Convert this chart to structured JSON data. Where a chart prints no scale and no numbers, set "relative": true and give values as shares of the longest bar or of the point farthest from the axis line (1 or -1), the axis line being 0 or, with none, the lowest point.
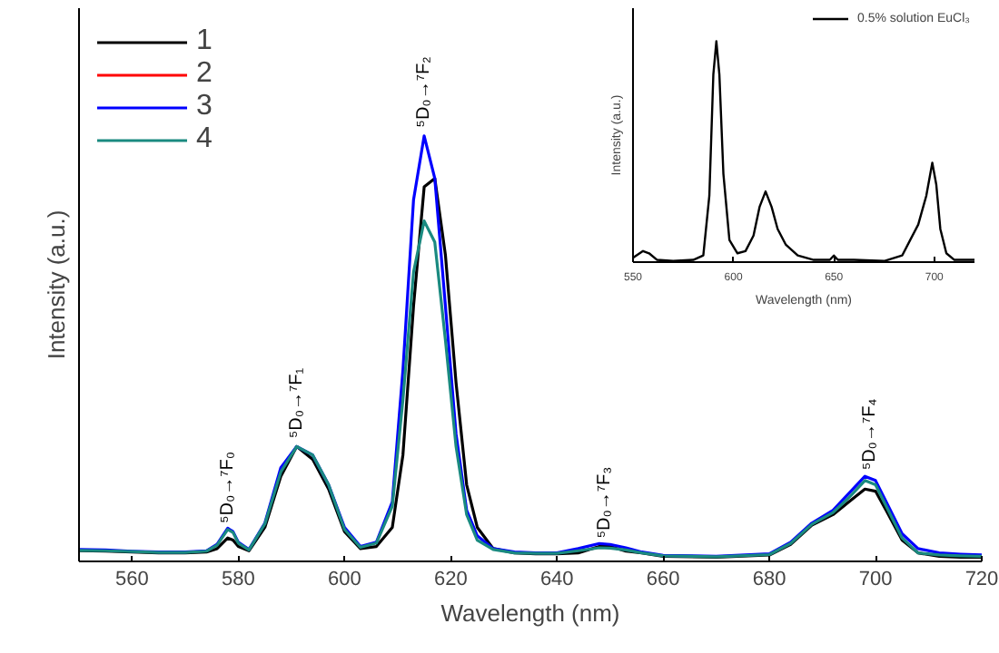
{
  "chart_data": [
    {
      "type": "line",
      "xlabel": "Wavelength (nm)",
      "ylabel": "Intensity (a.u.)",
      "xlim": [
        550,
        720
      ],
      "xticks": [
        560,
        580,
        600,
        620,
        640,
        660,
        680,
        700,
        720
      ],
      "relative": true,
      "tick_labels": "x",
      "grid": false,
      "legend": "top left",
      "x": [
        550,
        555,
        560,
        565,
        570,
        574,
        576,
        578,
        579,
        580,
        582,
        585,
        588,
        591,
        594,
        597,
        600,
        603,
        606,
        609,
        611,
        613,
        615,
        617,
        619,
        621,
        623,
        625,
        628,
        632,
        636,
        640,
        644,
        648,
        650,
        653,
        656,
        660,
        670,
        680,
        684,
        688,
        692,
        695,
        698,
        700,
        702,
        705,
        708,
        712,
        716,
        720
      ],
      "series": [
        {
          "name": "1",
          "color": "#000000",
          "values": [
            0.025,
            0.024,
            0.022,
            0.02,
            0.02,
            0.022,
            0.03,
            0.055,
            0.05,
            0.035,
            0.025,
            0.08,
            0.2,
            0.27,
            0.24,
            0.17,
            0.07,
            0.03,
            0.035,
            0.08,
            0.25,
            0.6,
            0.88,
            0.9,
            0.72,
            0.42,
            0.18,
            0.08,
            0.03,
            0.02,
            0.018,
            0.018,
            0.02,
            0.035,
            0.035,
            0.024,
            0.02,
            0.012,
            0.01,
            0.015,
            0.04,
            0.085,
            0.11,
            0.14,
            0.17,
            0.165,
            0.12,
            0.05,
            0.02,
            0.012,
            0.01,
            0.01
          ]
        },
        {
          "name": "2",
          "color": "#ff0000",
          "values": [
            null,
            null,
            null,
            null,
            null,
            null,
            null,
            null,
            null,
            null,
            null,
            null,
            null,
            null,
            null,
            null,
            null,
            null,
            null,
            null,
            null,
            null,
            null,
            null,
            null,
            null,
            null,
            null,
            null,
            null,
            null,
            null,
            null,
            null,
            null,
            null,
            null,
            null,
            null,
            null,
            null,
            null,
            null,
            null,
            null,
            null,
            null,
            null,
            null,
            null,
            null,
            null
          ]
        },
        {
          "name": "3",
          "color": "#0000ff",
          "values": [
            0.028,
            0.027,
            0.024,
            0.022,
            0.022,
            0.025,
            0.04,
            0.078,
            0.07,
            0.045,
            0.028,
            0.09,
            0.22,
            0.27,
            0.25,
            0.18,
            0.08,
            0.035,
            0.045,
            0.14,
            0.45,
            0.85,
            1.0,
            0.9,
            0.6,
            0.3,
            0.12,
            0.06,
            0.03,
            0.022,
            0.02,
            0.02,
            0.03,
            0.042,
            0.04,
            0.032,
            0.022,
            0.014,
            0.012,
            0.018,
            0.045,
            0.09,
            0.12,
            0.16,
            0.2,
            0.19,
            0.14,
            0.065,
            0.03,
            0.02,
            0.017,
            0.015
          ]
        },
        {
          "name": "4",
          "color": "#1a8a80",
          "values": [
            0.026,
            0.025,
            0.023,
            0.021,
            0.021,
            0.024,
            0.038,
            0.075,
            0.068,
            0.043,
            0.027,
            0.088,
            0.21,
            0.27,
            0.25,
            0.18,
            0.075,
            0.033,
            0.043,
            0.13,
            0.38,
            0.68,
            0.8,
            0.75,
            0.52,
            0.27,
            0.11,
            0.05,
            0.028,
            0.02,
            0.019,
            0.019,
            0.025,
            0.032,
            0.031,
            0.027,
            0.02,
            0.013,
            0.011,
            0.016,
            0.042,
            0.087,
            0.115,
            0.15,
            0.19,
            0.18,
            0.13,
            0.055,
            0.02,
            0.015,
            0.013,
            0.012
          ]
        }
      ],
      "annotations": [
        {
          "text": "⁵D₀→⁷F₀",
          "x": 578,
          "y": 0.09
        },
        {
          "text": "⁵D₀→⁷F₁",
          "x": 591,
          "y": 0.29
        },
        {
          "text": "⁵D₀→⁷F₂",
          "x": 615,
          "y": 1.02
        },
        {
          "text": "⁵D₀→⁷F₃",
          "x": 649,
          "y": 0.055
        },
        {
          "text": "⁵D₀→⁷F₄",
          "x": 699,
          "y": 0.215
        }
      ]
    },
    {
      "type": "line",
      "xlabel": "Wavelength (nm)",
      "ylabel": "Intensity (a.u.)",
      "xlim": [
        550,
        720
      ],
      "xticks": [
        550,
        600,
        650,
        700
      ],
      "relative": true,
      "tick_labels": "x",
      "grid": false,
      "legend": "top right",
      "x": [
        550,
        555,
        558,
        562,
        570,
        580,
        585,
        588,
        590,
        591.5,
        593,
        595,
        598,
        602,
        606,
        610,
        613,
        616,
        619,
        622,
        626,
        632,
        640,
        648,
        650,
        652,
        660,
        675,
        684,
        688,
        692,
        696,
        699,
        701,
        703,
        706,
        710,
        720
      ],
      "series": [
        {
          "name": "0.5% solution EuCl₃",
          "color": "#000000",
          "values": [
            0.02,
            0.05,
            0.04,
            0.01,
            0.005,
            0.01,
            0.03,
            0.3,
            0.85,
            1.0,
            0.85,
            0.4,
            0.1,
            0.04,
            0.05,
            0.12,
            0.25,
            0.32,
            0.25,
            0.15,
            0.08,
            0.03,
            0.01,
            0.01,
            0.03,
            0.01,
            0.01,
            0.005,
            0.03,
            0.1,
            0.17,
            0.3,
            0.45,
            0.35,
            0.15,
            0.04,
            0.01,
            0.01
          ]
        }
      ]
    }
  ]
}
